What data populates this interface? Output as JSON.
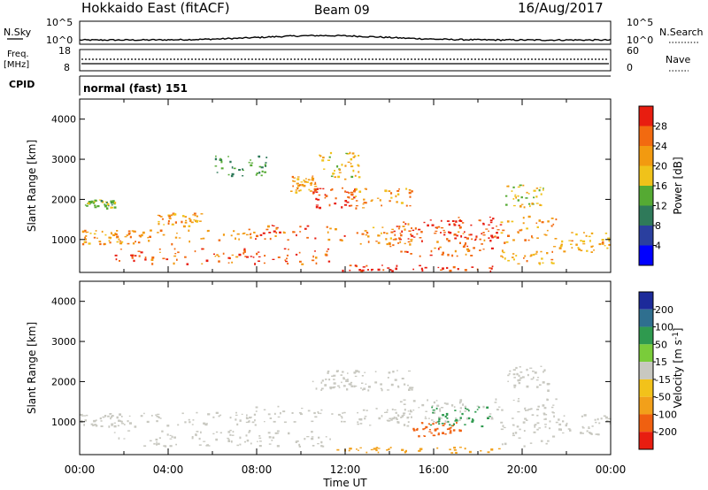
{
  "header": {
    "station": "Hokkaido East (fitACF)",
    "beam": "Beam 09",
    "date": "16/Aug/2017"
  },
  "panels": {
    "nsky": {
      "left_label": "N.Sky",
      "right_label": "N.Search",
      "left_ticks": [
        "10^5",
        "10^0"
      ],
      "right_ticks": [
        "10^5",
        "10^0"
      ]
    },
    "freq": {
      "left_label_1": "Freq.",
      "left_label_2": "[MHz]",
      "right_label": "Nave",
      "left_ticks": [
        "18",
        "8"
      ],
      "right_ticks": [
        "60",
        "0"
      ]
    },
    "cpid": {
      "left_label": "CPID",
      "program": "normal (fast) 151"
    }
  },
  "chart_data": [
    {
      "type": "heatmap",
      "title": "",
      "xlabel": "Time UT",
      "ylabel": "Slant Range [km]",
      "xlim": [
        "00:00",
        "24:00"
      ],
      "ylim": [
        180,
        4500
      ],
      "x_ticks": [
        "00:00",
        "04:00",
        "08:00",
        "12:00",
        "16:00",
        "20:00",
        "00:00"
      ],
      "y_ticks": [
        1000,
        2000,
        3000,
        4000
      ],
      "colorbar": {
        "label": "Power [dB]",
        "ticks": [
          4,
          8,
          12,
          16,
          20,
          24,
          28
        ],
        "range": [
          0,
          32
        ],
        "colors": [
          "#0000ff",
          "#2a3f9f",
          "#2f7a5a",
          "#55aa33",
          "#f0c21a",
          "#f29a10",
          "#f26a10",
          "#e81d10"
        ]
      },
      "regions": [
        {
          "t0": 0.0,
          "t1": 2.0,
          "r0": 900,
          "r1": 1250,
          "value": 22
        },
        {
          "t0": 0.2,
          "t1": 1.6,
          "r0": 1800,
          "r1": 2000,
          "value": 14
        },
        {
          "t0": 1.5,
          "t1": 11.5,
          "r0": 400,
          "r1": 800,
          "value": 27
        },
        {
          "t0": 2.0,
          "t1": 8.0,
          "r0": 900,
          "r1": 1250,
          "value": 24
        },
        {
          "t0": 3.5,
          "t1": 5.5,
          "r0": 1350,
          "r1": 1700,
          "value": 22
        },
        {
          "t0": 6.0,
          "t1": 8.5,
          "r0": 2600,
          "r1": 3100,
          "value": 12
        },
        {
          "t0": 7.5,
          "t1": 12.0,
          "r0": 1000,
          "r1": 1400,
          "value": 26
        },
        {
          "t0": 9.5,
          "t1": 10.8,
          "r0": 2200,
          "r1": 2600,
          "value": 22
        },
        {
          "t0": 10.5,
          "t1": 12.5,
          "r0": 1800,
          "r1": 2300,
          "value": 29
        },
        {
          "t0": 10.8,
          "t1": 12.6,
          "r0": 2500,
          "r1": 3200,
          "value": 18
        },
        {
          "t0": 12.0,
          "t1": 15.0,
          "r0": 1800,
          "r1": 2300,
          "value": 23
        },
        {
          "t0": 12.5,
          "t1": 15.0,
          "r0": 900,
          "r1": 1350,
          "value": 23
        },
        {
          "t0": 11.5,
          "t1": 19.0,
          "r0": 230,
          "r1": 380,
          "value": 30
        },
        {
          "t0": 14.0,
          "t1": 19.0,
          "r0": 600,
          "r1": 1500,
          "value": 27
        },
        {
          "t0": 16.0,
          "t1": 19.0,
          "r0": 1000,
          "r1": 1600,
          "value": 28
        },
        {
          "t0": 19.0,
          "t1": 21.5,
          "r0": 400,
          "r1": 1600,
          "value": 22
        },
        {
          "t0": 19.2,
          "t1": 21.2,
          "r0": 1800,
          "r1": 2400,
          "value": 18
        },
        {
          "t0": 21.5,
          "t1": 24.0,
          "r0": 700,
          "r1": 1200,
          "value": 21
        }
      ]
    },
    {
      "type": "heatmap",
      "title": "",
      "xlabel": "Time UT",
      "ylabel": "Slant Range [km]",
      "xlim": [
        "00:00",
        "24:00"
      ],
      "ylim": [
        180,
        4500
      ],
      "x_ticks": [
        "00:00",
        "04:00",
        "08:00",
        "12:00",
        "16:00",
        "20:00",
        "00:00"
      ],
      "y_ticks": [
        1000,
        2000,
        3000,
        4000
      ],
      "colorbar": {
        "label": "Velocity [m s^-1]",
        "ticks": [
          200,
          100,
          50,
          15,
          -15,
          -50,
          -100,
          -200
        ],
        "colors": [
          "#1c2a9a",
          "#2f6f8f",
          "#2f9a4f",
          "#7acc3a",
          "#c8c8c0",
          "#f2c21a",
          "#f2a01a",
          "#f06010",
          "#e81d10"
        ]
      },
      "regions": [
        {
          "t0": 0.0,
          "t1": 2.0,
          "r0": 900,
          "r1": 1250,
          "value": 0
        },
        {
          "t0": 1.5,
          "t1": 11.5,
          "r0": 400,
          "r1": 800,
          "value": 0
        },
        {
          "t0": 2.0,
          "t1": 8.0,
          "r0": 900,
          "r1": 1250,
          "value": 0
        },
        {
          "t0": 7.5,
          "t1": 12.0,
          "r0": 1000,
          "r1": 1400,
          "value": 0
        },
        {
          "t0": 10.5,
          "t1": 12.5,
          "r0": 1800,
          "r1": 2300,
          "value": 0
        },
        {
          "t0": 12.0,
          "t1": 15.0,
          "r0": 1800,
          "r1": 2300,
          "value": 0
        },
        {
          "t0": 12.5,
          "t1": 15.0,
          "r0": 900,
          "r1": 1350,
          "value": 0
        },
        {
          "t0": 11.5,
          "t1": 19.0,
          "r0": 230,
          "r1": 380,
          "value": -60
        },
        {
          "t0": 14.0,
          "t1": 19.0,
          "r0": 1000,
          "r1": 1600,
          "value": 0
        },
        {
          "t0": 15.8,
          "t1": 18.5,
          "r0": 900,
          "r1": 1400,
          "value": 60
        },
        {
          "t0": 15.0,
          "t1": 17.2,
          "r0": 650,
          "r1": 1000,
          "value": -80
        },
        {
          "t0": 19.0,
          "t1": 21.5,
          "r0": 400,
          "r1": 1600,
          "value": 0
        },
        {
          "t0": 19.2,
          "t1": 21.2,
          "r0": 1800,
          "r1": 2400,
          "value": 0
        },
        {
          "t0": 21.5,
          "t1": 24.0,
          "r0": 700,
          "r1": 1200,
          "value": 0
        }
      ]
    }
  ]
}
